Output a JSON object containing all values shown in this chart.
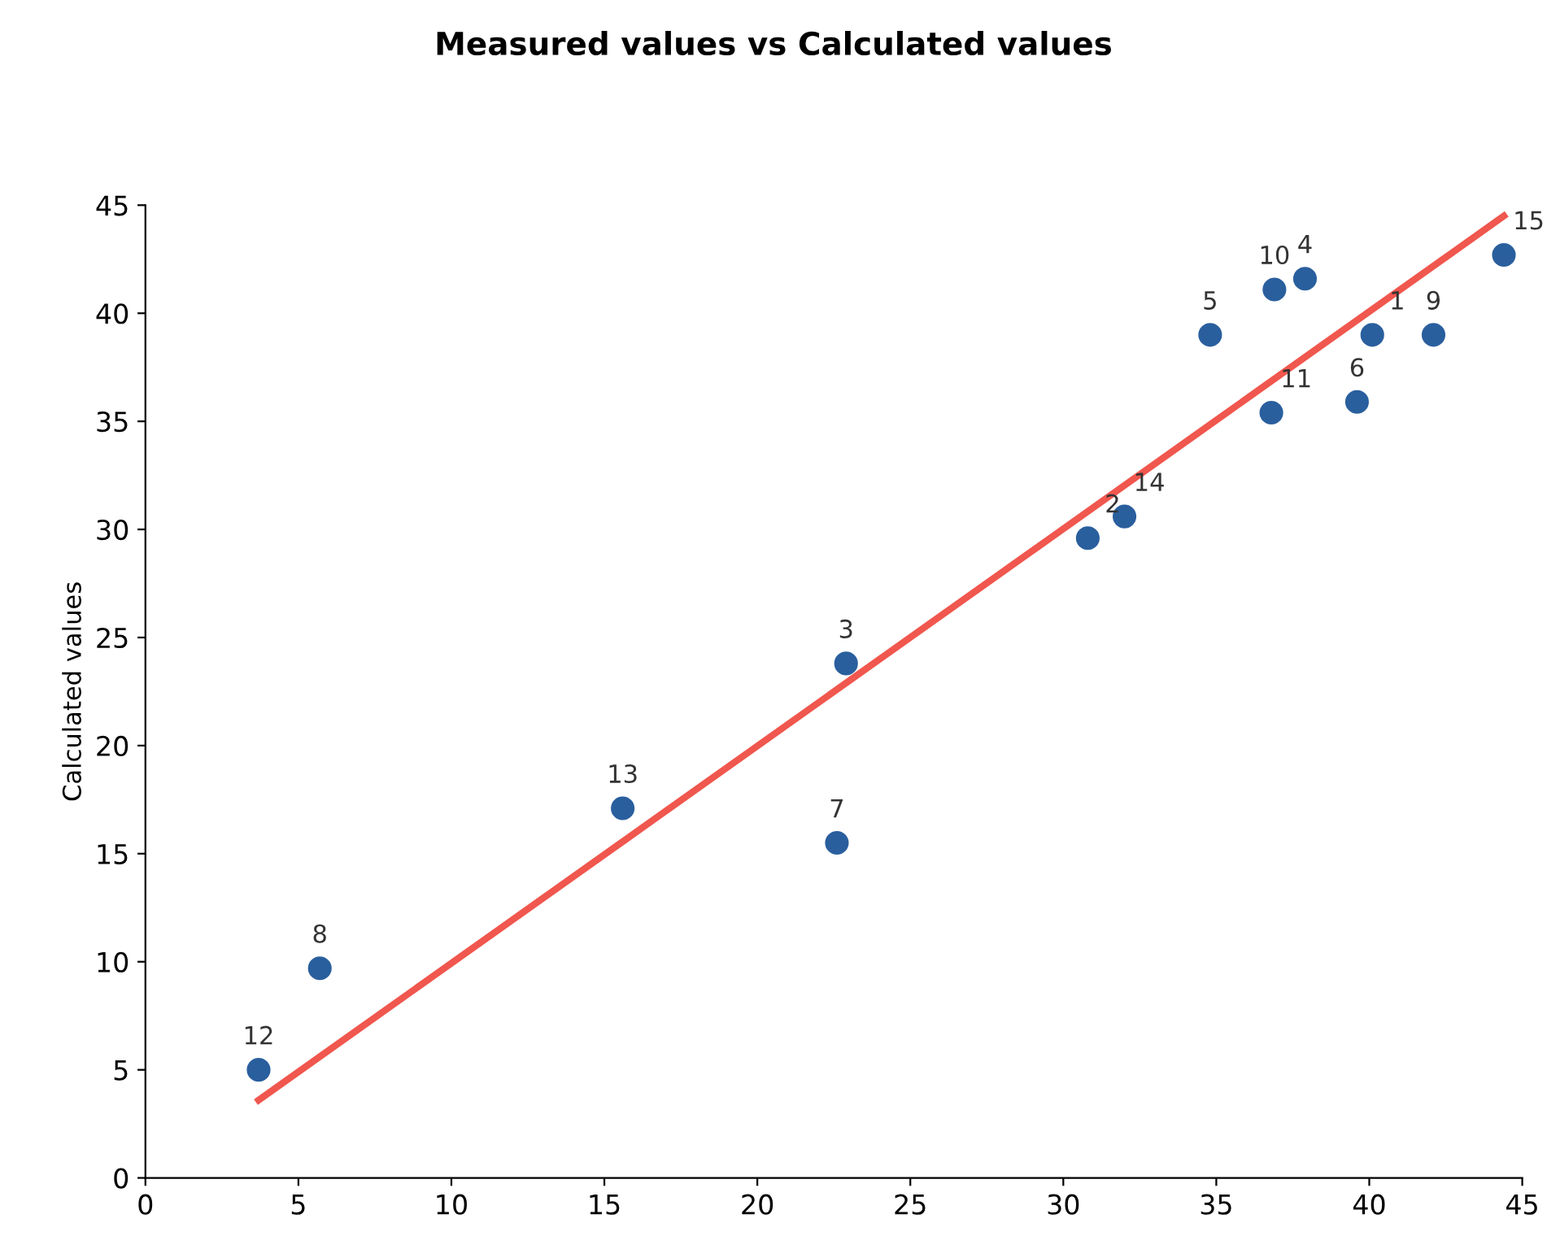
{
  "chart_data": {
    "type": "scatter",
    "title": "Measured values vs Calculated values",
    "ylabel": "Calculated values",
    "xlim": [
      0,
      45
    ],
    "xticks": [
      0,
      5,
      10,
      15,
      20,
      25,
      30,
      35,
      40,
      45
    ],
    "ylim": [
      0,
      45
    ],
    "yticks": [
      0,
      5,
      10,
      15,
      20,
      25,
      30,
      35,
      40,
      45
    ],
    "grid": false,
    "series": [
      {
        "color": "#2a5f9e",
        "marker": "circle",
        "x": [
          40.1,
          30.8,
          22.9,
          37.9,
          34.8,
          39.6,
          22.6,
          5.7,
          42.1,
          36.9,
          36.8,
          3.7,
          15.6,
          32.0,
          44.4
        ],
        "values": [
          39.0,
          29.6,
          23.8,
          41.6,
          39.0,
          35.9,
          15.5,
          9.7,
          39.0,
          41.1,
          35.4,
          5.0,
          17.1,
          30.6,
          42.7
        ]
      },
      {
        "type": "line",
        "color": "#f0574e",
        "marker": "none",
        "x": [
          3.7,
          44.4
        ],
        "values": [
          3.6,
          44.5
        ]
      }
    ],
    "annotations": [
      {
        "text": "1",
        "x": 40.1,
        "y": 39.0
      },
      {
        "text": "2",
        "x": 30.8,
        "y": 29.6
      },
      {
        "text": "3",
        "x": 22.9,
        "y": 23.8
      },
      {
        "text": "4",
        "x": 37.9,
        "y": 41.6
      },
      {
        "text": "5",
        "x": 34.8,
        "y": 39.0
      },
      {
        "text": "6",
        "x": 39.6,
        "y": 35.9
      },
      {
        "text": "7",
        "x": 22.6,
        "y": 15.5
      },
      {
        "text": "8",
        "x": 5.7,
        "y": 9.7
      },
      {
        "text": "9",
        "x": 42.1,
        "y": 39.0
      },
      {
        "text": "10",
        "x": 36.9,
        "y": 41.1
      },
      {
        "text": "11",
        "x": 36.8,
        "y": 35.4
      },
      {
        "text": "12",
        "x": 3.7,
        "y": 5.0
      },
      {
        "text": "13",
        "x": 15.6,
        "y": 17.1
      },
      {
        "text": "14",
        "x": 32.0,
        "y": 30.6
      },
      {
        "text": "15",
        "x": 44.4,
        "y": 42.7
      }
    ]
  }
}
